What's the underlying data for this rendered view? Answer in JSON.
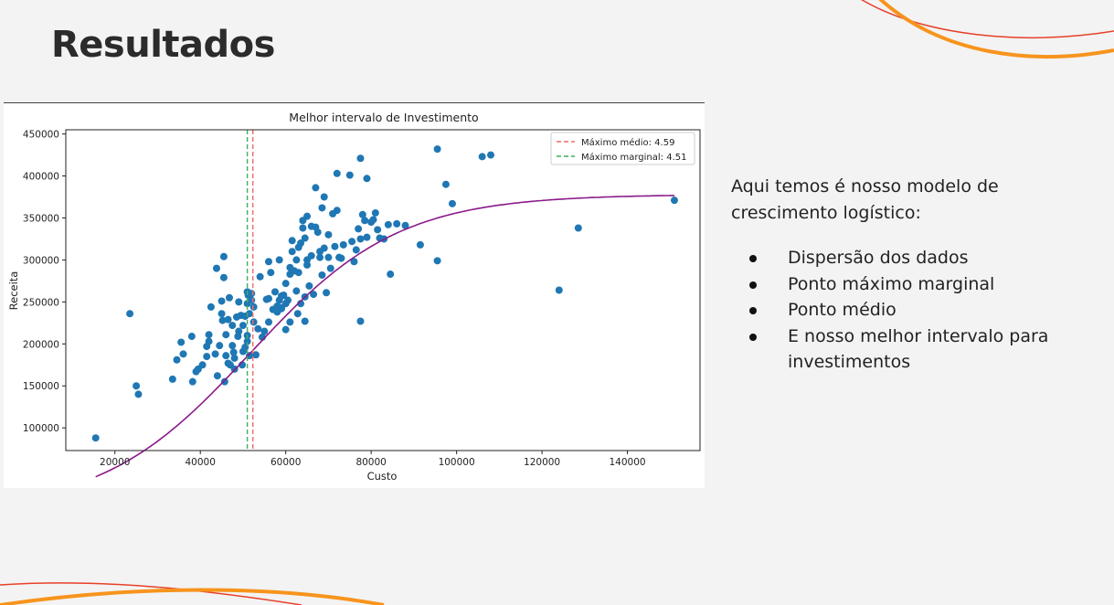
{
  "slide": {
    "title": "Resultados",
    "description": "Aqui temos é nosso modelo de crescimento logístico:",
    "bullets": [
      "Dispersão dos dados",
      "Ponto máximo marginal",
      "Ponto médio",
      "E nosso melhor intervalo para investimentos"
    ],
    "accent_color": "#f7941d",
    "accent_color_secondary": "#e8402a"
  },
  "chart_data": {
    "type": "scatter",
    "title": "Melhor intervalo de Investimento",
    "xlabel": "Custo",
    "ylabel": "Receita",
    "xlim": [
      8500,
      157000
    ],
    "ylim": [
      73000,
      455000
    ],
    "xticks": [
      20000,
      40000,
      60000,
      80000,
      100000,
      120000,
      140000
    ],
    "yticks": [
      100000,
      150000,
      200000,
      250000,
      300000,
      350000,
      400000,
      450000
    ],
    "grid": false,
    "legend_position": "top-right",
    "scatter_color": "#1f77b4",
    "curve_color": "#8b1a8b",
    "vlines": [
      {
        "label": "Máximo médio: 4.59",
        "x": 52300,
        "color": "#ef6b6b"
      },
      {
        "label": "Máximo marginal: 4.51",
        "x": 51000,
        "color": "#3fae5f"
      }
    ],
    "logistic_curve": {
      "L": 378000,
      "k": 5.76e-05,
      "x0": 51700,
      "x_start": 15500,
      "x_end": 151000
    },
    "points": [
      [
        15500,
        88000
      ],
      [
        23500,
        236000
      ],
      [
        25000,
        150000
      ],
      [
        25500,
        140000
      ],
      [
        33500,
        158000
      ],
      [
        34500,
        181000
      ],
      [
        35500,
        202000
      ],
      [
        36000,
        188000
      ],
      [
        38000,
        209000
      ],
      [
        38200,
        155000
      ],
      [
        39000,
        167000
      ],
      [
        39500,
        170000
      ],
      [
        40500,
        175000
      ],
      [
        41500,
        185000
      ],
      [
        41500,
        197000
      ],
      [
        42000,
        203000
      ],
      [
        42000,
        211000
      ],
      [
        42500,
        244000
      ],
      [
        43500,
        188000
      ],
      [
        43800,
        290000
      ],
      [
        44000,
        162000
      ],
      [
        44500,
        198000
      ],
      [
        45000,
        236000
      ],
      [
        45000,
        251000
      ],
      [
        45200,
        228000
      ],
      [
        45500,
        304000
      ],
      [
        45500,
        279000
      ],
      [
        45700,
        155000
      ],
      [
        46000,
        211000
      ],
      [
        46000,
        186000
      ],
      [
        46500,
        229000
      ],
      [
        46500,
        177000
      ],
      [
        46800,
        255000
      ],
      [
        47000,
        175000
      ],
      [
        47500,
        198000
      ],
      [
        47500,
        222000
      ],
      [
        47800,
        190000
      ],
      [
        48000,
        170000
      ],
      [
        48000,
        183000
      ],
      [
        48500,
        232000
      ],
      [
        48800,
        209000
      ],
      [
        49000,
        250000
      ],
      [
        49000,
        215000
      ],
      [
        49500,
        234000
      ],
      [
        49800,
        175000
      ],
      [
        50000,
        222000
      ],
      [
        50000,
        191000
      ],
      [
        50500,
        196000
      ],
      [
        50500,
        233000
      ],
      [
        51000,
        210000
      ],
      [
        51000,
        203000
      ],
      [
        51000,
        248000
      ],
      [
        51000,
        262000
      ],
      [
        51200,
        258000
      ],
      [
        51500,
        186000
      ],
      [
        51500,
        236000
      ],
      [
        52000,
        252000
      ],
      [
        52000,
        260000
      ],
      [
        52500,
        226000
      ],
      [
        52500,
        244000
      ],
      [
        53000,
        187000
      ],
      [
        53500,
        218000
      ],
      [
        54000,
        280000
      ],
      [
        54500,
        208000
      ],
      [
        55000,
        215000
      ],
      [
        55500,
        253000
      ],
      [
        56000,
        298000
      ],
      [
        56000,
        254000
      ],
      [
        56000,
        226000
      ],
      [
        56500,
        285000
      ],
      [
        57000,
        241000
      ],
      [
        57500,
        262000
      ],
      [
        58000,
        245000
      ],
      [
        58000,
        238000
      ],
      [
        58500,
        300000
      ],
      [
        58500,
        252000
      ],
      [
        59000,
        242000
      ],
      [
        59000,
        257000
      ],
      [
        59000,
        243000
      ],
      [
        59500,
        258000
      ],
      [
        60000,
        272000
      ],
      [
        60000,
        217000
      ],
      [
        60000,
        248000
      ],
      [
        60500,
        252000
      ],
      [
        61000,
        283000
      ],
      [
        61000,
        291000
      ],
      [
        61000,
        226000
      ],
      [
        61500,
        310000
      ],
      [
        61500,
        323000
      ],
      [
        62000,
        287000
      ],
      [
        62500,
        263000
      ],
      [
        62500,
        300000
      ],
      [
        62800,
        236000
      ],
      [
        63000,
        315000
      ],
      [
        63000,
        285000
      ],
      [
        63500,
        320000
      ],
      [
        63500,
        248000
      ],
      [
        64000,
        347000
      ],
      [
        64000,
        338000
      ],
      [
        64500,
        326000
      ],
      [
        64500,
        256000
      ],
      [
        64500,
        227000
      ],
      [
        65000,
        294000
      ],
      [
        65000,
        352000
      ],
      [
        65000,
        300000
      ],
      [
        65500,
        269000
      ],
      [
        66000,
        340000
      ],
      [
        66000,
        305000
      ],
      [
        66500,
        259000
      ],
      [
        67000,
        339000
      ],
      [
        67000,
        386000
      ],
      [
        67500,
        333000
      ],
      [
        68000,
        303000
      ],
      [
        68000,
        310000
      ],
      [
        68500,
        362000
      ],
      [
        68500,
        282000
      ],
      [
        69000,
        314000
      ],
      [
        69000,
        375000
      ],
      [
        69500,
        261000
      ],
      [
        70000,
        330000
      ],
      [
        70000,
        303000
      ],
      [
        70500,
        290000
      ],
      [
        71000,
        355000
      ],
      [
        71500,
        316000
      ],
      [
        72000,
        359000
      ],
      [
        72500,
        303000
      ],
      [
        73000,
        302000
      ],
      [
        73500,
        318000
      ],
      [
        75000,
        401000
      ],
      [
        75500,
        322000
      ],
      [
        76000,
        298000
      ],
      [
        76500,
        312000
      ],
      [
        77000,
        337000
      ],
      [
        77500,
        325000
      ],
      [
        77500,
        227000
      ],
      [
        78000,
        354000
      ],
      [
        78500,
        347000
      ],
      [
        79000,
        327000
      ],
      [
        79000,
        397000
      ],
      [
        80000,
        345000
      ],
      [
        80500,
        348000
      ],
      [
        81000,
        356000
      ],
      [
        81500,
        336000
      ],
      [
        82000,
        326000
      ],
      [
        83000,
        325000
      ],
      [
        84000,
        342000
      ],
      [
        84500,
        283000
      ],
      [
        86000,
        343000
      ],
      [
        88000,
        341000
      ],
      [
        91500,
        318000
      ],
      [
        72000,
        403000
      ],
      [
        77500,
        421000
      ],
      [
        95500,
        432000
      ],
      [
        95500,
        299000
      ],
      [
        97500,
        390000
      ],
      [
        99000,
        367000
      ],
      [
        106000,
        423000
      ],
      [
        108000,
        425000
      ],
      [
        124000,
        264000
      ],
      [
        128500,
        338000
      ],
      [
        151000,
        371000
      ]
    ]
  }
}
